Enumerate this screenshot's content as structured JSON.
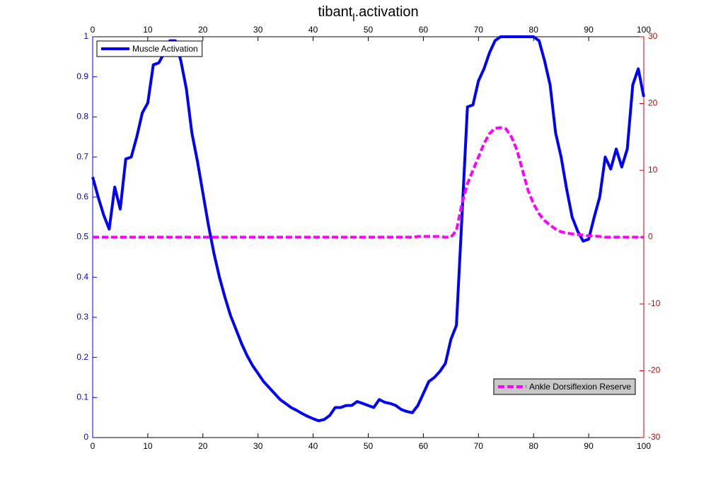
{
  "chart_data": {
    "type": "line",
    "title": "tibant_l.activation",
    "x": [
      0,
      1,
      2,
      3,
      4,
      5,
      6,
      7,
      8,
      9,
      10,
      11,
      12,
      13,
      14,
      15,
      16,
      17,
      18,
      19,
      20,
      21,
      22,
      23,
      24,
      25,
      26,
      27,
      28,
      29,
      30,
      31,
      32,
      33,
      34,
      35,
      36,
      37,
      38,
      39,
      40,
      41,
      42,
      43,
      44,
      45,
      46,
      47,
      48,
      49,
      50,
      51,
      52,
      53,
      54,
      55,
      56,
      57,
      58,
      59,
      60,
      61,
      62,
      63,
      64,
      65,
      66,
      67,
      68,
      69,
      70,
      71,
      72,
      73,
      74,
      75,
      76,
      77,
      78,
      79,
      80,
      81,
      82,
      83,
      84,
      85,
      86,
      87,
      88,
      89,
      90,
      91,
      92,
      93,
      94,
      95,
      96,
      97,
      98,
      99,
      100
    ],
    "xlim": [
      0,
      100
    ],
    "xticks": [
      0,
      10,
      20,
      30,
      40,
      50,
      60,
      70,
      80,
      90,
      100
    ],
    "ylim": [
      0,
      1
    ],
    "yticks": [
      0,
      0.1,
      0.2,
      0.3,
      0.4,
      0.5,
      0.6,
      0.7,
      0.8,
      0.9,
      1
    ],
    "ycolor": "#0000cc",
    "y2lim": [
      -30,
      30
    ],
    "y2ticks": [
      -30,
      -20,
      -10,
      0,
      10,
      20,
      30
    ],
    "y2color": "#cc0000",
    "series": [
      {
        "name": "Muscle Activation",
        "color": "#0000ff",
        "legend_location": "northwest",
        "legend_facecolor": "#ffffff",
        "values": [
          0.65,
          0.6,
          0.555,
          0.52,
          0.625,
          0.57,
          0.695,
          0.7,
          0.75,
          0.81,
          0.835,
          0.93,
          0.935,
          0.96,
          0.99,
          0.99,
          0.94,
          0.87,
          0.76,
          0.69,
          0.61,
          0.53,
          0.46,
          0.4,
          0.35,
          0.305,
          0.27,
          0.235,
          0.205,
          0.18,
          0.16,
          0.14,
          0.125,
          0.11,
          0.095,
          0.085,
          0.075,
          0.068,
          0.06,
          0.053,
          0.047,
          0.042,
          0.045,
          0.055,
          0.075,
          0.075,
          0.08,
          0.08,
          0.09,
          0.085,
          0.08,
          0.075,
          0.095,
          0.088,
          0.085,
          0.08,
          0.07,
          0.065,
          0.062,
          0.08,
          0.11,
          0.14,
          0.15,
          0.165,
          0.185,
          0.245,
          0.28,
          0.55,
          0.825,
          0.83,
          0.89,
          0.92,
          0.96,
          0.99,
          1,
          1,
          1,
          1,
          1,
          1,
          1,
          0.99,
          0.94,
          0.88,
          0.76,
          0.7,
          0.62,
          0.55,
          0.515,
          0.49,
          0.495,
          0.55,
          0.6,
          0.7,
          0.67,
          0.72,
          0.675,
          0.72,
          0.88,
          0.92,
          0.85
        ]
      },
      {
        "name": "Ankle Dorsiflexion Reserve",
        "color": "#ff00ff",
        "axis": "y2",
        "dashed": true,
        "legend_location": "southeast",
        "legend_facecolor": "#c8c8c8",
        "values": [
          0,
          0,
          0,
          0,
          0,
          0,
          0,
          0,
          0,
          0,
          0,
          0,
          0,
          0,
          0,
          0,
          0,
          0,
          0,
          0,
          0,
          0,
          0,
          0,
          0,
          0,
          0,
          0,
          0,
          0,
          0,
          0,
          0,
          0,
          0,
          0,
          0,
          0,
          0,
          0,
          0,
          0,
          0,
          0,
          0,
          0,
          0,
          0,
          0,
          0,
          0,
          0,
          0,
          0,
          0,
          0,
          0,
          0,
          0,
          0.1,
          0.1,
          0.1,
          0.1,
          0.1,
          0,
          0,
          1,
          5,
          8,
          10,
          12,
          14,
          15.5,
          16.3,
          16.4,
          16.2,
          15,
          13,
          10,
          7,
          5,
          3.5,
          2.5,
          1.8,
          1.2,
          0.8,
          0.6,
          0.5,
          0.4,
          0.3,
          0.2,
          0.15,
          0.1,
          0,
          0,
          0,
          0,
          0,
          0,
          0,
          0
        ]
      }
    ]
  }
}
